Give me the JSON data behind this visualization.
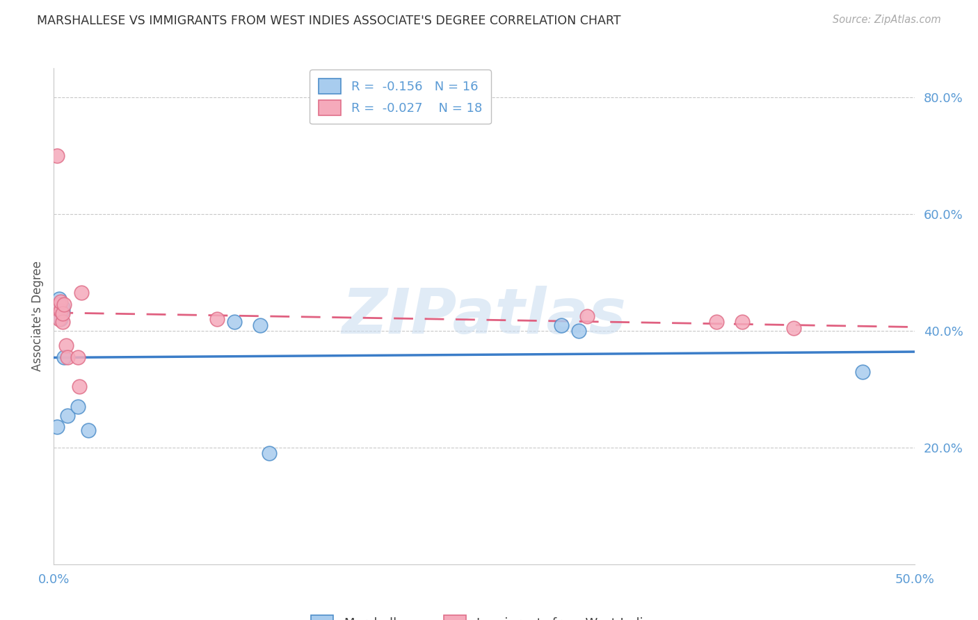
{
  "title": "MARSHALLESE VS IMMIGRANTS FROM WEST INDIES ASSOCIATE'S DEGREE CORRELATION CHART",
  "source": "Source: ZipAtlas.com",
  "ylabel": "Associate's Degree",
  "xlim": [
    0.0,
    0.5
  ],
  "ylim": [
    0.0,
    0.85
  ],
  "yticks": [
    0.2,
    0.4,
    0.6,
    0.8
  ],
  "ytick_labels": [
    "20.0%",
    "40.0%",
    "60.0%",
    "80.0%"
  ],
  "xticks": [
    0.0,
    0.1,
    0.2,
    0.3,
    0.4,
    0.5
  ],
  "xtick_labels": [
    "0.0%",
    "",
    "",
    "",
    "",
    "50.0%"
  ],
  "blue_R": "-0.156",
  "blue_N": "16",
  "pink_R": "-0.027",
  "pink_N": "18",
  "legend_label_blue": "Marshallese",
  "legend_label_pink": "Immigrants from West Indies",
  "blue_fill": "#A8CCEE",
  "pink_fill": "#F5AABB",
  "blue_edge": "#4F8FCA",
  "pink_edge": "#E0708A",
  "blue_line": "#3B7DC8",
  "pink_line": "#E06080",
  "title_color": "#333333",
  "axis_label_color": "#5B9BD5",
  "source_color": "#aaaaaa",
  "watermark": "ZIPatlas",
  "watermark_color": "#C8DCF0",
  "grid_color": "#C8C8C8",
  "blue_scatter_x": [
    0.002,
    0.003,
    0.004,
    0.004,
    0.005,
    0.005,
    0.006,
    0.008,
    0.014,
    0.02,
    0.105,
    0.12,
    0.125,
    0.295,
    0.305,
    0.47
  ],
  "blue_scatter_y": [
    0.235,
    0.455,
    0.445,
    0.42,
    0.435,
    0.44,
    0.355,
    0.255,
    0.27,
    0.23,
    0.415,
    0.41,
    0.19,
    0.41,
    0.4,
    0.33
  ],
  "pink_scatter_x": [
    0.002,
    0.003,
    0.003,
    0.004,
    0.004,
    0.005,
    0.005,
    0.006,
    0.007,
    0.008,
    0.014,
    0.015,
    0.016,
    0.095,
    0.31,
    0.385,
    0.4,
    0.43
  ],
  "pink_scatter_y": [
    0.7,
    0.445,
    0.42,
    0.435,
    0.45,
    0.415,
    0.43,
    0.445,
    0.375,
    0.355,
    0.355,
    0.305,
    0.465,
    0.42,
    0.425,
    0.415,
    0.415,
    0.405
  ]
}
